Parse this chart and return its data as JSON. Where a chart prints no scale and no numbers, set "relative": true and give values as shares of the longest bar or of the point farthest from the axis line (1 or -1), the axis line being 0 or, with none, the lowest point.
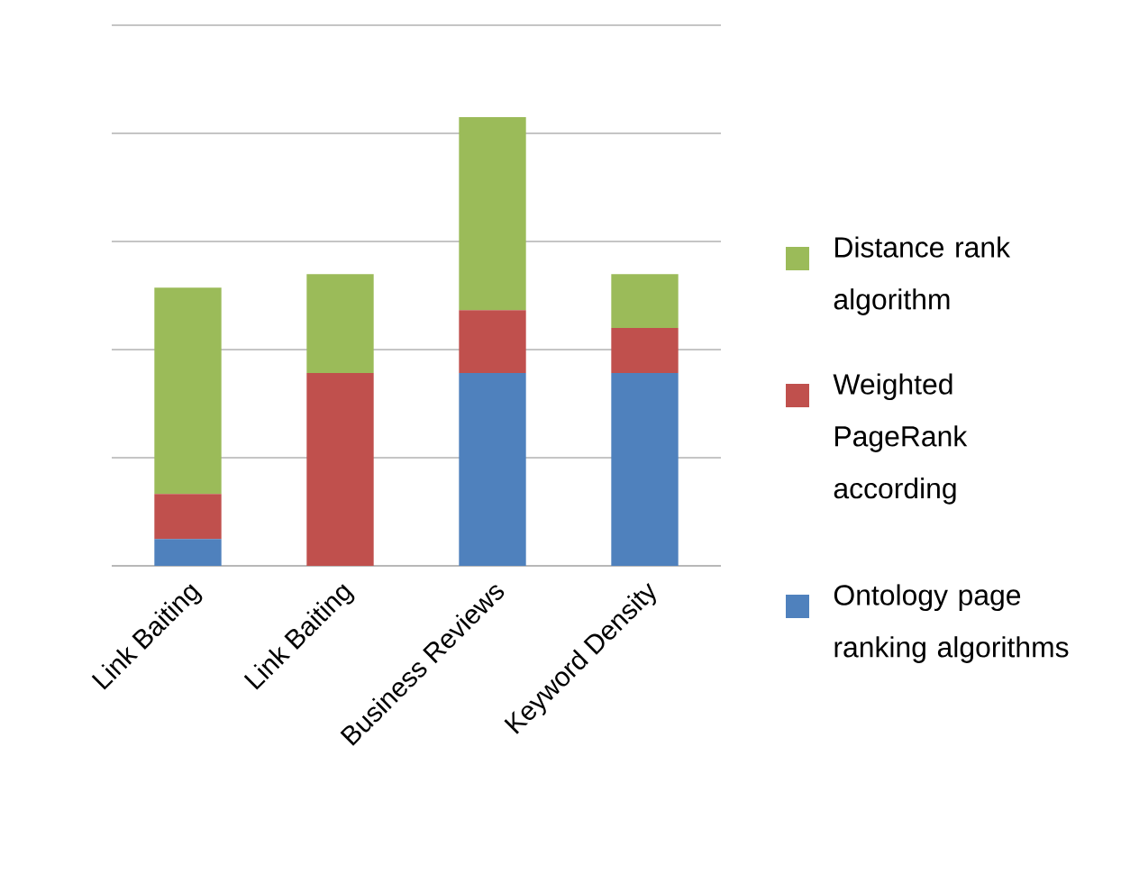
{
  "chart_data": {
    "type": "bar",
    "stacked": true,
    "relative": true,
    "grid": "y",
    "legend": "right",
    "categories": [
      "Link Baiting",
      "Link Baiting",
      "Business Reviews",
      "Keyword Density"
    ],
    "series": [
      {
        "name": "Ontology page ranking algorithms",
        "color": "#4f81bd",
        "values": [
          0.06,
          0,
          0.43,
          0.43
        ]
      },
      {
        "name": "Weighted PageRank according",
        "color": "#c0504d",
        "values": [
          0.1,
          0.43,
          0.14,
          0.1
        ]
      },
      {
        "name": "Distance rank algorithm",
        "color": "#9bbb59",
        "values": [
          0.46,
          0.22,
          0.43,
          0.12
        ]
      }
    ]
  }
}
